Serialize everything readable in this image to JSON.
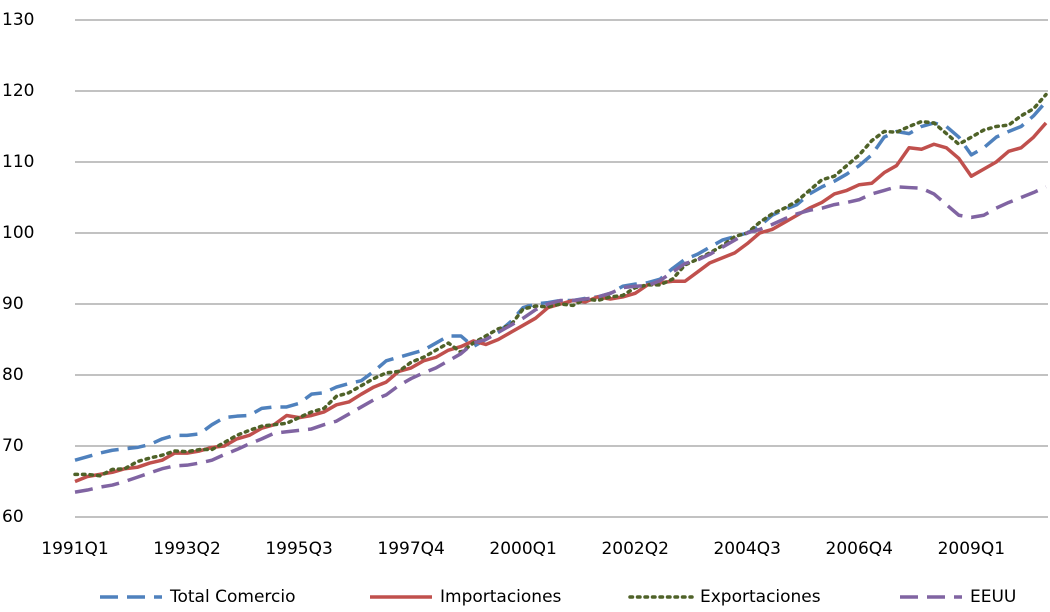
{
  "chart_data": {
    "type": "line",
    "categories": [
      "1991Q1",
      null,
      null,
      null,
      null,
      null,
      null,
      null,
      null,
      "1993Q2",
      null,
      null,
      null,
      null,
      null,
      null,
      null,
      null,
      "1995Q3",
      null,
      null,
      null,
      null,
      null,
      null,
      null,
      null,
      "1997Q4",
      null,
      null,
      null,
      null,
      null,
      null,
      null,
      null,
      "2000Q1",
      null,
      null,
      null,
      null,
      null,
      null,
      null,
      null,
      "2002Q2",
      null,
      null,
      null,
      null,
      null,
      null,
      null,
      null,
      "2004Q3",
      null,
      null,
      null,
      null,
      null,
      null,
      null,
      null,
      "2006Q4",
      null,
      null,
      null,
      null,
      null,
      null,
      null,
      null,
      "2009Q1",
      null,
      null,
      null,
      null,
      null,
      null
    ],
    "ylim": [
      60,
      130
    ],
    "yticks": [
      60,
      70,
      80,
      90,
      100,
      110,
      120,
      130
    ],
    "grid": true,
    "legend": "bottom",
    "series": [
      {
        "name": "Total Comercio",
        "color": "#4f81bd",
        "dash": "dashed",
        "values": [
          68,
          68.5,
          69,
          69.4,
          69.6,
          69.8,
          70.2,
          71,
          71.5,
          71.5,
          71.7,
          73,
          74,
          74.2,
          74.3,
          75.3,
          75.5,
          75.5,
          76,
          77.3,
          77.5,
          78.3,
          78.8,
          79.2,
          80.5,
          82,
          82.5,
          83,
          83.5,
          84.5,
          85.5,
          85.5,
          84,
          85,
          86,
          87.5,
          89.5,
          90,
          90.2,
          90.5,
          90.5,
          90.8,
          91,
          91.5,
          92.5,
          92.8,
          93,
          93.5,
          95,
          96.3,
          97,
          98,
          99,
          99.5,
          100,
          101,
          102.5,
          103.3,
          104,
          105.5,
          106.5,
          107.3,
          108.3,
          109.5,
          111,
          113.5,
          114.3,
          114,
          115,
          115.5,
          115,
          113.5,
          111,
          112,
          113.5,
          114.3,
          115,
          116.5,
          118.5
        ]
      },
      {
        "name": "Importaciones",
        "color": "#c0504d",
        "dash": "solid",
        "values": [
          65,
          65.7,
          66,
          66.3,
          66.8,
          67,
          67.6,
          68,
          69,
          69,
          69.3,
          69.8,
          70,
          71,
          71.5,
          72.5,
          73,
          74.3,
          74,
          74.3,
          74.8,
          75.8,
          76.2,
          77.3,
          78.3,
          79,
          80.5,
          81,
          82,
          82.5,
          83.5,
          84,
          84.8,
          84.3,
          85,
          86,
          87,
          88,
          89.5,
          90,
          90.5,
          90.3,
          91,
          90.7,
          91,
          91.5,
          92.7,
          93,
          93.2,
          93.2,
          94.5,
          95.8,
          96.5,
          97.2,
          98.5,
          100,
          100.5,
          101.5,
          102.5,
          103.5,
          104.3,
          105.5,
          106,
          106.8,
          107,
          108.5,
          109.5,
          112,
          111.8,
          112.5,
          112,
          110.5,
          108,
          109,
          110,
          111.5,
          112,
          113.5,
          115.5
        ]
      },
      {
        "name": "Exportaciones",
        "color": "#4f6228",
        "dash": "dotted",
        "values": [
          66,
          66,
          65.8,
          66.7,
          66.8,
          67.8,
          68.3,
          68.7,
          69.3,
          69.2,
          69.5,
          69.5,
          70.5,
          71.5,
          72.2,
          72.8,
          73,
          73.2,
          74,
          74.8,
          75.3,
          77,
          77.5,
          78.5,
          79.5,
          80.3,
          80.5,
          81.8,
          82.5,
          83.5,
          84.5,
          83.2,
          84.5,
          85.5,
          86.5,
          87,
          89.3,
          89.7,
          89.6,
          90,
          89.8,
          90.7,
          90.5,
          91,
          91.2,
          92.3,
          92.7,
          92.7,
          93.5,
          95.5,
          96.3,
          97.2,
          98.2,
          99.5,
          100,
          101.5,
          102.7,
          103.5,
          104.5,
          106,
          107.5,
          108,
          109.5,
          111,
          113,
          114.3,
          114.2,
          115,
          115.7,
          115.5,
          114,
          112.5,
          113.5,
          114.5,
          115,
          115.2,
          116.5,
          117.5,
          119.5
        ]
      },
      {
        "name": "EEUU",
        "color": "#8064a2",
        "dash": "dashed",
        "values": [
          63.5,
          63.8,
          64.2,
          64.5,
          65,
          65.6,
          66.2,
          66.8,
          67.2,
          67.3,
          67.6,
          68,
          68.8,
          69.5,
          70.3,
          71,
          71.8,
          72,
          72.2,
          72.4,
          73,
          73.5,
          74.5,
          75.5,
          76.5,
          77.2,
          78.5,
          79.5,
          80.3,
          81,
          82,
          83,
          84.5,
          85,
          86,
          87,
          88,
          89.2,
          90,
          90.5,
          90.5,
          90.7,
          91,
          91.5,
          92.3,
          92.5,
          92.6,
          93.3,
          94.5,
          95.7,
          96.2,
          97,
          98,
          99,
          100,
          100.5,
          101.2,
          102,
          102.7,
          103.2,
          103.5,
          104,
          104.3,
          104.7,
          105.5,
          106,
          106.5,
          106.4,
          106.3,
          105.5,
          104,
          102.5,
          102.2,
          102.5,
          103.5,
          104.3,
          105,
          105.7,
          106.5
        ]
      }
    ]
  }
}
